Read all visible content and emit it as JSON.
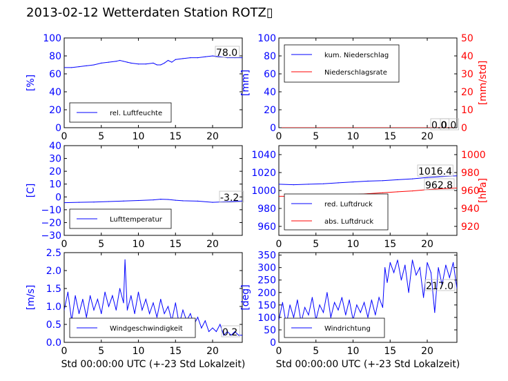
{
  "title": "2013-02-12 Wetterdaten Station ROTZ▯",
  "colors": {
    "blue": "#0000ff",
    "red": "#ff0000",
    "black": "#000000"
  },
  "chart_data": [
    {
      "type": "line",
      "panel": "humidity",
      "ylabel": "[%]",
      "ylim": [
        0,
        100
      ],
      "yticks": [
        0,
        20,
        40,
        60,
        80,
        100
      ],
      "xlim": [
        0,
        24
      ],
      "xticks": [
        0,
        5,
        10,
        15,
        20
      ],
      "legend_position": "lower-left",
      "annotations": [
        "78.0"
      ],
      "series": [
        {
          "name": "rel. Luftfeuchte",
          "color": "#0000ff",
          "axis": "left",
          "x": [
            0,
            1,
            2,
            3,
            4,
            5,
            6,
            7,
            7.5,
            8,
            8.5,
            9,
            10,
            11,
            12,
            12.5,
            13,
            13.5,
            14,
            14.5,
            15,
            16,
            17,
            18,
            19,
            20,
            21,
            22,
            23,
            24
          ],
          "y": [
            67,
            67,
            68,
            69,
            70,
            72,
            73,
            74,
            75,
            74,
            73,
            72,
            71,
            71,
            72,
            70,
            70,
            72,
            75,
            73,
            76,
            77,
            78,
            78,
            79,
            80,
            79,
            78,
            78,
            78
          ]
        }
      ]
    },
    {
      "type": "line",
      "panel": "precipitation",
      "ylabel": "[mm]",
      "y2label": "[mm/std]",
      "ylim": [
        0,
        100
      ],
      "yticks": [
        0,
        20,
        40,
        60,
        80,
        100
      ],
      "y2lim": [
        0,
        50
      ],
      "y2ticks": [
        0,
        10,
        20,
        30,
        40,
        50
      ],
      "xlim": [
        0,
        24
      ],
      "xticks": [
        0,
        5,
        10,
        15,
        20
      ],
      "legend_position": "upper-left",
      "annotations": [
        "0.0",
        "0.0"
      ],
      "series": [
        {
          "name": "kum. Niederschlag",
          "color": "#0000ff",
          "axis": "left",
          "x": [
            0,
            24
          ],
          "y": [
            0,
            0
          ]
        },
        {
          "name": "Niederschlagsrate",
          "color": "#ff0000",
          "axis": "right",
          "x": [
            0,
            24
          ],
          "y": [
            0,
            0
          ]
        }
      ]
    },
    {
      "type": "line",
      "panel": "temperature",
      "ylabel": "[C]",
      "ylim": [
        -30,
        40
      ],
      "yticks": [
        -30,
        -20,
        -10,
        0,
        10,
        20,
        30,
        40
      ],
      "xlim": [
        0,
        24
      ],
      "xticks": [
        0,
        5,
        10,
        15,
        20
      ],
      "legend_position": "lower-left",
      "annotations": [
        "-3.2"
      ],
      "series": [
        {
          "name": "Lufttemperatur",
          "color": "#0000ff",
          "axis": "left",
          "x": [
            0,
            2,
            4,
            6,
            8,
            10,
            12,
            13,
            14,
            15,
            16,
            18,
            20,
            22,
            24
          ],
          "y": [
            -4.5,
            -4.2,
            -4,
            -3.6,
            -3.2,
            -2.8,
            -2.3,
            -1.8,
            -2,
            -2.6,
            -3,
            -3.3,
            -4.2,
            -3.8,
            -3.2
          ]
        }
      ]
    },
    {
      "type": "line",
      "panel": "pressure",
      "ylabel": "",
      "y2label": "[hPa]",
      "ylim": [
        950,
        1050
      ],
      "yticks": [
        960,
        980,
        1000,
        1020,
        1040
      ],
      "y2lim": [
        910,
        1010
      ],
      "y2ticks": [
        920,
        940,
        960,
        980,
        1000
      ],
      "xlim": [
        0,
        24
      ],
      "xticks": [
        0,
        5,
        10,
        15,
        20
      ],
      "legend_position": "lower-left",
      "annotations": [
        "1016.4",
        "962.8"
      ],
      "series": [
        {
          "name": "red. Luftdruck",
          "color": "#0000ff",
          "axis": "left",
          "x": [
            0,
            2,
            4,
            6,
            8,
            10,
            12,
            14,
            16,
            18,
            20,
            22,
            24
          ],
          "y": [
            1007,
            1006.5,
            1007,
            1007.5,
            1008.5,
            1009.5,
            1010.5,
            1011,
            1012,
            1013,
            1014.5,
            1015.5,
            1016.4
          ]
        },
        {
          "name": "abs. Luftdruck",
          "color": "#ff0000",
          "axis": "right",
          "x": [
            0,
            2,
            4,
            6,
            8,
            10,
            12,
            14,
            16,
            18,
            20,
            22,
            24
          ],
          "y": [
            953.5,
            953.5,
            954,
            954.5,
            955,
            955.5,
            956.5,
            957.5,
            958.5,
            959.5,
            961,
            962,
            962.8
          ]
        }
      ]
    },
    {
      "type": "line",
      "panel": "wind-speed",
      "ylabel": "[m/s]",
      "xlabel": "Std 00:00:00 UTC (+-23 Std Lokalzeit)",
      "ylim": [
        0,
        2.5
      ],
      "yticks": [
        0.0,
        0.5,
        1.0,
        1.5,
        2.0,
        2.5
      ],
      "xlim": [
        0,
        24
      ],
      "xticks": [
        0,
        5,
        10,
        15,
        20
      ],
      "legend_position": "lower-center",
      "annotations": [
        "0.2"
      ],
      "series": [
        {
          "name": "Windgeschwindigkeit",
          "color": "#0000ff",
          "axis": "left",
          "x": [
            0,
            0.5,
            1,
            1.5,
            2,
            2.5,
            3,
            3.5,
            4,
            4.5,
            5,
            5.5,
            6,
            6.5,
            7,
            7.5,
            8,
            8.2,
            8.5,
            9,
            9.5,
            10,
            10.5,
            11,
            11.5,
            12,
            12.5,
            13,
            13.5,
            14,
            14.5,
            15,
            15.5,
            16,
            16.5,
            17,
            17.5,
            18,
            18.5,
            19,
            19.5,
            20,
            20.5,
            21,
            21.5,
            22,
            22.5,
            23,
            23.5,
            24
          ],
          "y": [
            0.9,
            1.4,
            0.6,
            1.3,
            0.8,
            1.2,
            0.7,
            1.3,
            0.9,
            1.2,
            0.8,
            1.4,
            1.0,
            1.3,
            0.9,
            1.5,
            1.1,
            2.3,
            0.9,
            1.3,
            0.8,
            1.4,
            0.9,
            1.2,
            0.8,
            1.1,
            0.7,
            1.2,
            0.8,
            1.0,
            0.6,
            1.1,
            0.5,
            0.9,
            0.6,
            0.8,
            0.5,
            0.7,
            0.4,
            0.6,
            0.3,
            0.4,
            0.3,
            0.5,
            0.2,
            0.3,
            0.2,
            0.3,
            0.2,
            0.2
          ]
        }
      ]
    },
    {
      "type": "line",
      "panel": "wind-direction",
      "ylabel": "[deg]",
      "xlabel": "Std 00:00:00 UTC (+-23 Std Lokalzeit)",
      "ylim": [
        0,
        360
      ],
      "yticks": [
        0,
        50,
        100,
        150,
        200,
        250,
        300,
        350
      ],
      "xlim": [
        0,
        24
      ],
      "xticks": [
        0,
        5,
        10,
        15,
        20
      ],
      "legend_position": "lower-left",
      "annotations": [
        "217.0"
      ],
      "series": [
        {
          "name": "Windrichtung",
          "color": "#0000ff",
          "axis": "left",
          "x": [
            0,
            0.5,
            1,
            1.5,
            2,
            2.5,
            3,
            3.5,
            4,
            4.5,
            5,
            5.5,
            6,
            6.5,
            7,
            7.5,
            8,
            8.5,
            9,
            9.5,
            10,
            10.5,
            11,
            11.5,
            12,
            12.5,
            13,
            13.5,
            14,
            14.3,
            14.6,
            15,
            15.5,
            16,
            16.5,
            17,
            17.5,
            18,
            18.5,
            19,
            19.5,
            20,
            20.5,
            21,
            21.5,
            22,
            22.5,
            23,
            23.5,
            24
          ],
          "y": [
            90,
            160,
            70,
            150,
            100,
            170,
            80,
            140,
            110,
            180,
            90,
            150,
            120,
            200,
            100,
            160,
            130,
            180,
            110,
            170,
            90,
            150,
            120,
            160,
            100,
            170,
            110,
            180,
            140,
            300,
            240,
            320,
            280,
            330,
            250,
            310,
            200,
            330,
            270,
            300,
            180,
            320,
            280,
            120,
            300,
            230,
            310,
            260,
            320,
            217
          ]
        }
      ]
    }
  ]
}
